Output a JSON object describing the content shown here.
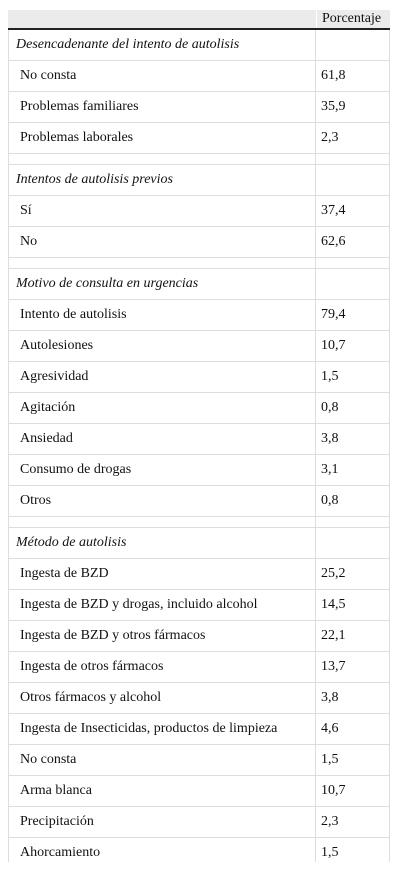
{
  "table": {
    "header": "Porcentaje",
    "sections": [
      {
        "title": "Desencadenante del intento de autolisis",
        "rows": [
          [
            "No consta",
            "61,8"
          ],
          [
            "Problemas familiares",
            "35,9"
          ],
          [
            "Problemas laborales",
            "2,3"
          ]
        ]
      },
      {
        "title": "Intentos de autolisis previos",
        "rows": [
          [
            "Sí",
            "37,4"
          ],
          [
            "No",
            "62,6"
          ]
        ]
      },
      {
        "title": "Motivo de consulta en urgencias",
        "rows": [
          [
            "Intento de autolisis",
            "79,4"
          ],
          [
            "Autolesiones",
            "10,7"
          ],
          [
            "Agresividad",
            "1,5"
          ],
          [
            "Agitación",
            "0,8"
          ],
          [
            "Ansiedad",
            "3,8"
          ],
          [
            "Consumo de drogas",
            "3,1"
          ],
          [
            "Otros",
            "0,8"
          ]
        ]
      },
      {
        "title": "Método de autolisis",
        "rows": [
          [
            "Ingesta de BZD",
            "25,2"
          ],
          [
            "Ingesta de BZD y drogas, incluido alcohol",
            "14,5"
          ],
          [
            "Ingesta de BZD y otros fármacos",
            "22,1"
          ],
          [
            "Ingesta de otros fármacos",
            "13,7"
          ],
          [
            "Otros fármacos y alcohol",
            "3,8"
          ],
          [
            "Ingesta de Insecticidas, productos de limpieza",
            "4,6"
          ],
          [
            "No consta",
            "1,5"
          ],
          [
            "Arma blanca",
            "10,7"
          ],
          [
            "Precipitación",
            "2,3"
          ],
          [
            "Ahorcamiento",
            "1,5"
          ]
        ]
      }
    ]
  }
}
